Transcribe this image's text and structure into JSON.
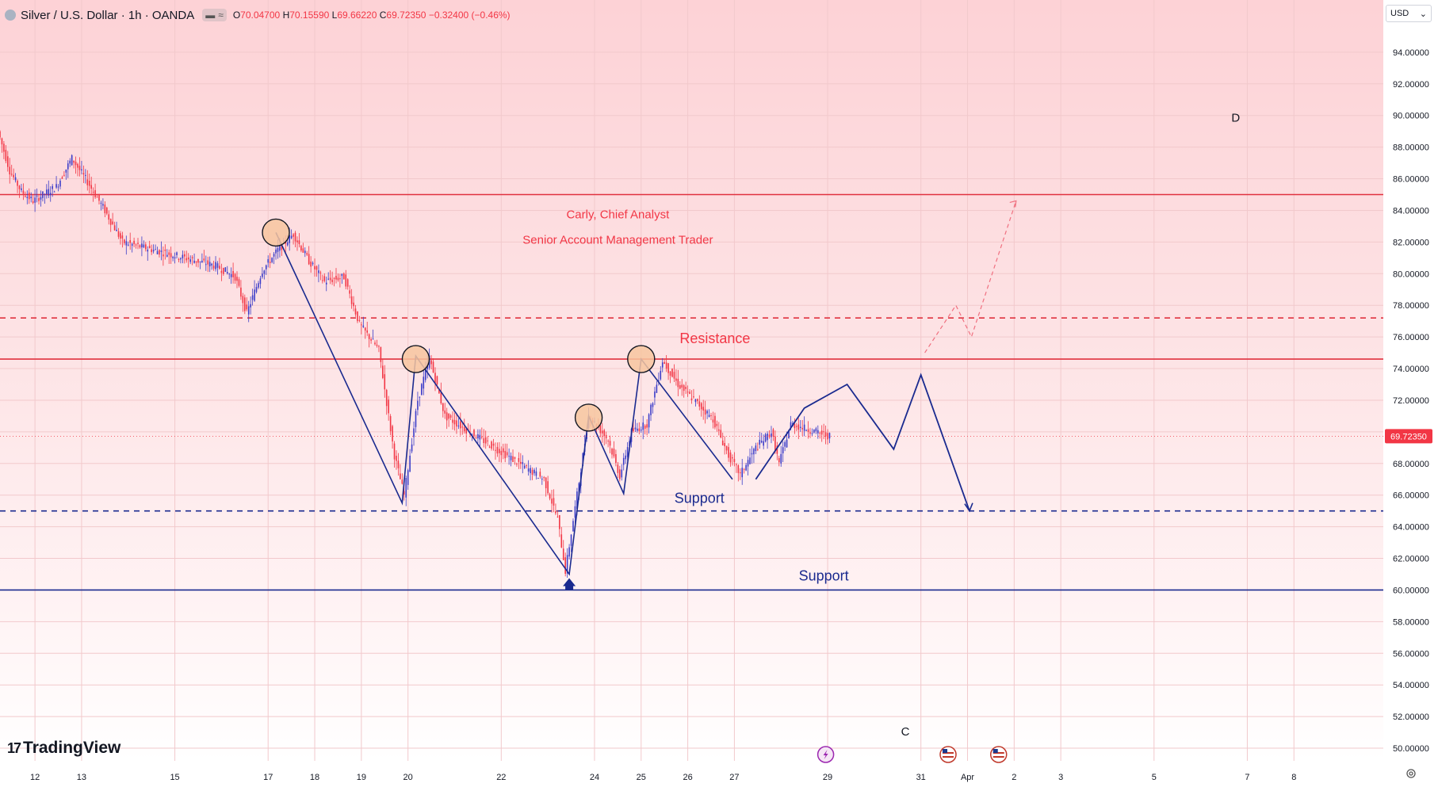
{
  "header": {
    "symbol": "Silver / U.S. Dollar · 1h · OANDA",
    "pill_a": "▬",
    "pill_b": "≈",
    "o_label": "O",
    "o_val": "70.04700",
    "h_label": "H",
    "h_val": "70.15590",
    "l_label": "L",
    "l_val": "69.66220",
    "c_label": "C",
    "c_val": "69.72350",
    "change": "−0.32400 (−0.46%)"
  },
  "currency": {
    "label": "USD",
    "chevron": "⌄"
  },
  "logo": {
    "mark": "17",
    "text": "TradingView"
  },
  "colors": {
    "red": "#f23645",
    "resistance_line": "#e0323f",
    "navy": "#1a2a8f",
    "candle_up": "#3b3dc9",
    "candle_down": "#f23645",
    "circle_fill": "#f7c59f"
  },
  "chart_data": {
    "type": "candlestick",
    "title": "Silver / U.S. Dollar · 1h · OANDA",
    "y_axis": {
      "ticks": [
        50,
        52,
        54,
        56,
        58,
        60,
        62,
        64,
        66,
        68,
        70,
        72,
        74,
        76,
        78,
        80,
        82,
        84,
        86,
        88,
        90,
        92,
        94
      ],
      "tick_labels": [
        "50.00000",
        "52.00000",
        "54.00000",
        "56.00000",
        "58.00000",
        "60.00000",
        "62.00000",
        "64.00000",
        "66.00000",
        "68.00000",
        "70.00000",
        "72.00000",
        "74.00000",
        "76.00000",
        "78.00000",
        "80.00000",
        "82.00000",
        "84.00000",
        "86.00000",
        "88.00000",
        "90.00000",
        "92.00000",
        "94.00000"
      ],
      "range": [
        49.2,
        97.3
      ]
    },
    "x_axis": {
      "range": [
        "2026-03-11 06:00",
        "2026-04-09 22:00"
      ],
      "ticks": [
        {
          "t": "2026-03-12 00:00",
          "label": "12"
        },
        {
          "t": "2026-03-13 00:00",
          "label": "13"
        },
        {
          "t": "2026-03-15 00:00",
          "label": "15"
        },
        {
          "t": "2026-03-17 00:00",
          "label": "17"
        },
        {
          "t": "2026-03-18 00:00",
          "label": "18"
        },
        {
          "t": "2026-03-19 00:00",
          "label": "19"
        },
        {
          "t": "2026-03-20 00:00",
          "label": "20"
        },
        {
          "t": "2026-03-22 00:00",
          "label": "22"
        },
        {
          "t": "2026-03-24 00:00",
          "label": "24"
        },
        {
          "t": "2026-03-25 00:00",
          "label": "25"
        },
        {
          "t": "2026-03-26 00:00",
          "label": "26"
        },
        {
          "t": "2026-03-27 00:00",
          "label": "27"
        },
        {
          "t": "2026-03-29 00:00",
          "label": "29"
        },
        {
          "t": "2026-03-31 00:00",
          "label": "31"
        },
        {
          "t": "2026-04-01 00:00",
          "label": "Apr"
        },
        {
          "t": "2026-04-02 00:00",
          "label": "2"
        },
        {
          "t": "2026-04-03 00:00",
          "label": "3"
        },
        {
          "t": "2026-04-05 00:00",
          "label": "5"
        },
        {
          "t": "2026-04-07 00:00",
          "label": "7"
        },
        {
          "t": "2026-04-08 00:00",
          "label": "8"
        }
      ]
    },
    "price_path": [
      [
        "2026-03-11 06:00",
        89.0
      ],
      [
        "2026-03-11 12:00",
        86.5
      ],
      [
        "2026-03-11 18:00",
        85.2
      ],
      [
        "2026-03-12 00:00",
        84.6
      ],
      [
        "2026-03-12 12:00",
        85.5
      ],
      [
        "2026-03-12 20:00",
        87.3
      ],
      [
        "2026-03-13 04:00",
        85.8
      ],
      [
        "2026-03-13 12:00",
        84.2
      ],
      [
        "2026-03-13 22:00",
        82.0
      ],
      [
        "2026-03-15 22:00",
        80.5
      ],
      [
        "2026-03-16 08:00",
        79.8
      ],
      [
        "2026-03-16 14:00",
        77.5
      ],
      [
        "2026-03-16 22:00",
        80.2
      ],
      [
        "2026-03-17 06:00",
        81.5
      ],
      [
        "2026-03-17 14:00",
        82.5
      ],
      [
        "2026-03-17 22:00",
        80.8
      ],
      [
        "2026-03-18 06:00",
        79.5
      ],
      [
        "2026-03-18 16:00",
        79.8
      ],
      [
        "2026-03-19 00:00",
        76.8
      ],
      [
        "2026-03-19 10:00",
        75.2
      ],
      [
        "2026-03-19 18:00",
        68.5
      ],
      [
        "2026-03-19 23:00",
        66.0
      ],
      [
        "2026-03-20 06:00",
        72.0
      ],
      [
        "2026-03-20 12:00",
        74.7
      ],
      [
        "2026-03-20 20:00",
        71.0
      ],
      [
        "2026-03-22 23:00",
        67.0
      ],
      [
        "2026-03-23 06:00",
        64.5
      ],
      [
        "2026-03-23 10:00",
        61.2
      ],
      [
        "2026-03-23 16:00",
        66.0
      ],
      [
        "2026-03-23 22:00",
        71.0
      ],
      [
        "2026-03-24 08:00",
        69.5
      ],
      [
        "2026-03-24 14:00",
        67.2
      ],
      [
        "2026-03-24 20:00",
        70.0
      ],
      [
        "2026-03-25 04:00",
        70.5
      ],
      [
        "2026-03-25 12:00",
        74.5
      ],
      [
        "2026-03-25 20:00",
        73.0
      ],
      [
        "2026-03-26 06:00",
        71.8
      ],
      [
        "2026-03-26 14:00",
        70.8
      ],
      [
        "2026-03-26 22:00",
        68.5
      ],
      [
        "2026-03-27 04:00",
        67.3
      ],
      [
        "2026-03-27 12:00",
        69.0
      ],
      [
        "2026-03-27 20:00",
        70.0
      ],
      [
        "2026-03-28 00:00",
        68.0
      ],
      [
        "2026-03-28 06:00",
        70.5
      ],
      [
        "2026-03-29 02:00",
        69.72
      ]
    ],
    "last_price": 69.7235,
    "last_price_label": "69.72350",
    "horizontal_lines": [
      {
        "name": "upper-resistance",
        "price": 85.0,
        "style": "solid",
        "color": "red"
      },
      {
        "name": "dashed-resistance",
        "price": 77.2,
        "style": "dashed",
        "color": "red"
      },
      {
        "name": "resistance",
        "price": 74.6,
        "style": "solid",
        "color": "red"
      },
      {
        "name": "dashed-support",
        "price": 65.0,
        "style": "dashed",
        "color": "navy"
      },
      {
        "name": "support",
        "price": 60.0,
        "style": "solid",
        "color": "navy"
      }
    ],
    "zigzag": [
      [
        "2026-03-17 04:00",
        82.6
      ],
      [
        "2026-03-19 21:00",
        65.5
      ],
      [
        "2026-03-20 04:00",
        74.8
      ],
      [
        "2026-03-23 11:00",
        61.0
      ],
      [
        "2026-03-23 21:00",
        71.0
      ],
      [
        "2026-03-24 15:00",
        66.1
      ],
      [
        "2026-03-25 00:00",
        74.6
      ],
      [
        "2026-03-26 23:00",
        67.0
      ]
    ],
    "projection": [
      [
        "2026-03-27 11:00",
        67.0
      ],
      [
        "2026-03-28 12:00",
        71.5
      ],
      [
        "2026-03-29 10:00",
        73.0
      ],
      [
        "2026-03-30 10:00",
        68.9
      ],
      [
        "2026-03-31 00:00",
        73.6
      ],
      [
        "2026-04-01 01:00",
        65.0
      ]
    ],
    "bull_projection": [
      [
        "2026-03-31 02:00",
        75.0
      ],
      [
        "2026-03-31 18:00",
        78.0
      ],
      [
        "2026-04-01 02:00",
        76.0
      ],
      [
        "2026-04-02 01:00",
        84.6
      ]
    ],
    "circles": [
      [
        "2026-03-17 04:00",
        82.6
      ],
      [
        "2026-03-20 04:00",
        74.6
      ],
      [
        "2026-03-23 21:00",
        70.9
      ],
      [
        "2026-03-25 00:00",
        74.6
      ]
    ],
    "up_arrow": [
      "2026-03-23 11:00",
      60.0
    ],
    "annotations": [
      {
        "text": "Resistance",
        "t": "2026-03-26 14:00",
        "price": 75.6,
        "color": "red"
      },
      {
        "text": "Support",
        "t": "2026-03-26 06:00",
        "price": 65.5,
        "color": "navy"
      },
      {
        "text": "Support",
        "t": "2026-03-28 22:00",
        "price": 60.6,
        "color": "navy"
      },
      {
        "text": "Carly, Chief Analyst",
        "t": "2026-03-24 12:00",
        "price": 83.5,
        "color": "red"
      },
      {
        "text": "Senior Account Management Trader",
        "t": "2026-03-24 12:00",
        "price": 81.9,
        "color": "red"
      },
      {
        "text": "D",
        "t": "2026-04-06 18:00",
        "price": 89.6,
        "color": "black"
      },
      {
        "text": "C",
        "t": "2026-03-30 16:00",
        "price": 50.8,
        "color": "black"
      }
    ],
    "event_icons": [
      {
        "icon": "lightning-event-icon",
        "t": "2026-03-28 23:00"
      },
      {
        "icon": "us-flag-event-icon",
        "t": "2026-03-31 14:00"
      },
      {
        "icon": "us-flag-event-icon",
        "t": "2026-04-01 16:00"
      }
    ]
  }
}
